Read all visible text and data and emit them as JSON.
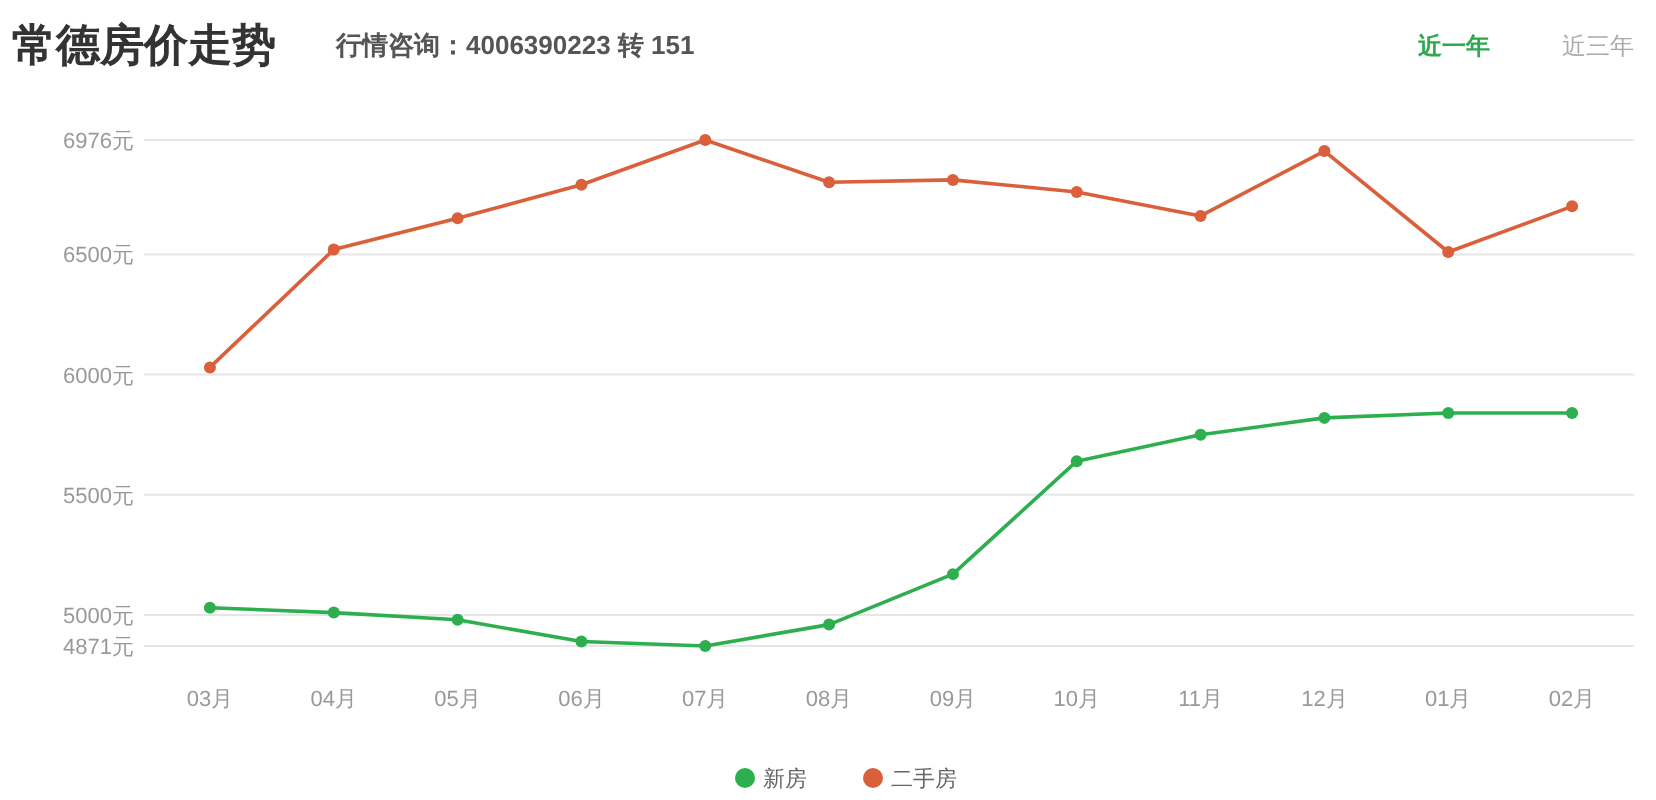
{
  "chart_data": {
    "type": "line",
    "title": "常德房价走势",
    "subtitle": "行情咨询：4006390223 转 151",
    "annotations": [
      "近一年",
      "近三年"
    ],
    "categories": [
      "03月",
      "04月",
      "05月",
      "06月",
      "07月",
      "08月",
      "09月",
      "10月",
      "11月",
      "12月",
      "01月",
      "02月"
    ],
    "series": [
      {
        "name": "新房",
        "color": "#2eaf4f",
        "values": [
          5030,
          5010,
          4980,
          4890,
          4871,
          4960,
          5170,
          5640,
          5750,
          5820,
          5840,
          5840
        ]
      },
      {
        "name": "二手房",
        "color": "#d9603b",
        "values": [
          6030,
          6520,
          6650,
          6790,
          6976,
          6800,
          6810,
          6760,
          6660,
          6930,
          6510,
          6700
        ]
      }
    ],
    "ylim": [
      4871,
      6976
    ],
    "yticks": [
      {
        "value": 4871,
        "label": "4871元"
      },
      {
        "value": 5000,
        "label": "5000元"
      },
      {
        "value": 5500,
        "label": "5500元"
      },
      {
        "value": 6000,
        "label": "6000元"
      },
      {
        "value": 6500,
        "label": "6500元"
      },
      {
        "value": 6976,
        "label": "6976元"
      }
    ],
    "grid": "y",
    "legend": "bottom",
    "marker": "circle",
    "line_style": "solid"
  }
}
